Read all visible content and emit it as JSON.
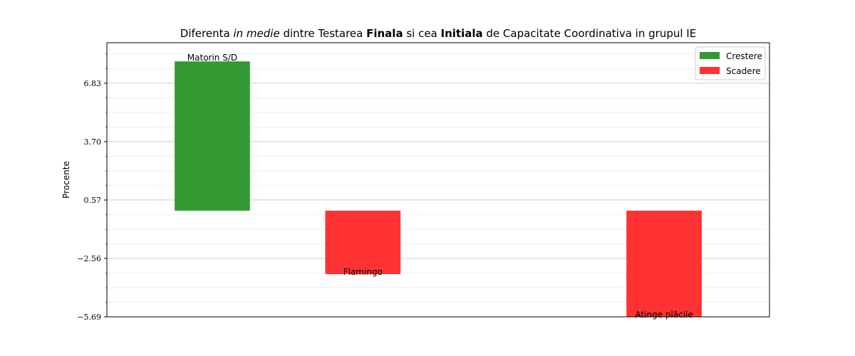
{
  "chart_data": {
    "type": "bar",
    "title": {
      "parts": [
        {
          "text": "Diferenta ",
          "style": "normal"
        },
        {
          "text": "in medie",
          "style": "italic"
        },
        {
          "text": " dintre Testarea ",
          "style": "normal"
        },
        {
          "text": "Finala",
          "style": "bold"
        },
        {
          "text": " si cea ",
          "style": "normal"
        },
        {
          "text": "Initiala",
          "style": "bold"
        },
        {
          "text": " de Capacitate Coordinativa in grupul IE",
          "style": "normal"
        }
      ]
    },
    "ylabel": "Procente",
    "xlabel": "",
    "ylim": [
      -5.69,
      9.0
    ],
    "yticks": [
      {
        "value": -5.69,
        "label": "−5.69"
      },
      {
        "value": -2.56,
        "label": "−2.56"
      },
      {
        "value": 0.57,
        "label": "0.57"
      },
      {
        "value": 3.7,
        "label": "3.70"
      },
      {
        "value": 6.83,
        "label": "6.83"
      }
    ],
    "minor_gridlines": [
      -4.91,
      -4.13,
      -3.35,
      -1.78,
      -1.0,
      -0.21,
      1.35,
      2.13,
      2.92,
      4.48,
      5.27,
      6.05,
      7.61,
      8.4
    ],
    "grid": true,
    "categories": [
      "Matorin S/D",
      "Flamingo",
      "",
      "Atinge plăcile"
    ],
    "values": [
      8.0,
      -3.4,
      null,
      -5.69
    ],
    "series_names": {
      "positive": "Crestere",
      "negative": "Scadere"
    },
    "colors": {
      "positive": "#339933",
      "negative": "#ff3333"
    },
    "legend": {
      "placement": "top-right",
      "entries": [
        {
          "label": "Crestere",
          "color": "#339933"
        },
        {
          "label": "Scadere",
          "color": "#ff3333"
        }
      ]
    }
  }
}
